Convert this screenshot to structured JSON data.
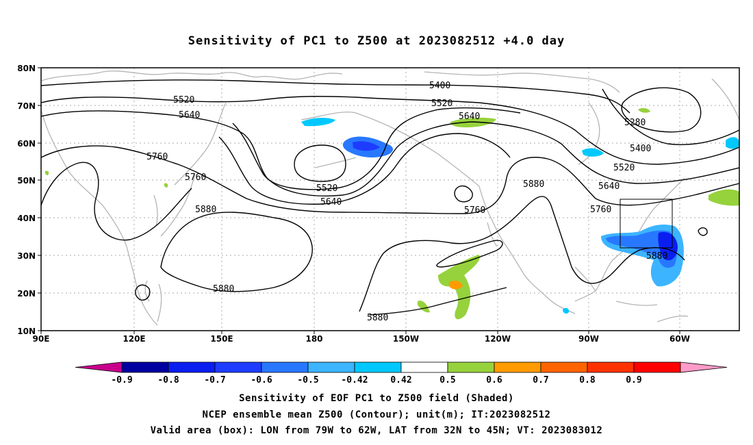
{
  "title": "Sensitivity of PC1 to Z500 at 2023082512 +4.0 day",
  "lat_ticks": [
    "80N",
    "70N",
    "60N",
    "50N",
    "40N",
    "30N",
    "20N",
    "10N"
  ],
  "lon_ticks": [
    "90E",
    "120E",
    "150E",
    "180",
    "150W",
    "120W",
    "90W",
    "60W"
  ],
  "contour_labels": [
    "5400",
    "5520",
    "5520",
    "5640",
    "5640",
    "5280",
    "5400",
    "5520",
    "5640",
    "5760",
    "5760",
    "5760",
    "5520",
    "5640",
    "5880",
    "5760",
    "5880",
    "5880",
    "5880",
    "5880"
  ],
  "colorbar": {
    "labels": [
      "-0.9",
      "-0.8",
      "-0.7",
      "-0.6",
      "-0.5",
      "-0.42",
      "0.42",
      "0.5",
      "0.6",
      "0.7",
      "0.8",
      "0.9"
    ],
    "colors": [
      "#c8008c",
      "#0000a0",
      "#0a1ef0",
      "#1e3cff",
      "#2878ff",
      "#3cb4ff",
      "#00c8ff",
      "#ffffff",
      "#96d23c",
      "#ff9b00",
      "#ff6400",
      "#ff3200",
      "#ff0000",
      "#ff9bc8"
    ]
  },
  "footer": {
    "line1": "Sensitivity of EOF PC1 to Z500 field (Shaded)",
    "line2": "NCEP ensemble mean Z500 (Contour); unit(m); IT:2023082512",
    "line3": "Valid area (box): LON from 79W to 62W, LAT from 32N to 45N; VT: 2023083012"
  }
}
